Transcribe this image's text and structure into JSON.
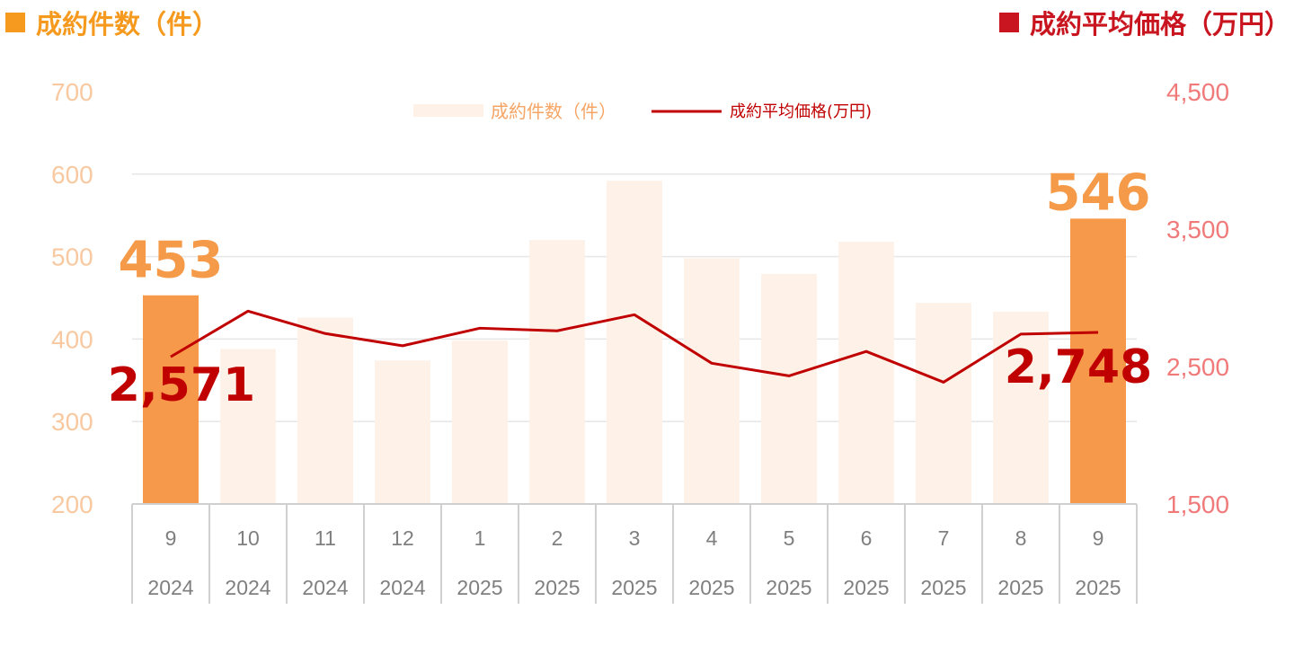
{
  "headers": {
    "left_title": "成約件数（件）",
    "right_title": "成約平均価格（万円）"
  },
  "colors": {
    "bar_light": "#FDF1E8",
    "bar_highlight": "#F7994A",
    "line": "#C00000",
    "grid": "#E6E6E6",
    "left_tick": "#F8C9A0",
    "right_tick": "#F07A7A",
    "header_left": "#F59A1E",
    "header_right": "#C8151F"
  },
  "chart_data": {
    "type": "bar",
    "categories": [
      [
        "9",
        "2024"
      ],
      [
        "10",
        "2024"
      ],
      [
        "11",
        "2024"
      ],
      [
        "12",
        "2024"
      ],
      [
        "1",
        "2025"
      ],
      [
        "2",
        "2025"
      ],
      [
        "3",
        "2025"
      ],
      [
        "4",
        "2025"
      ],
      [
        "5",
        "2025"
      ],
      [
        "6",
        "2025"
      ],
      [
        "7",
        "2025"
      ],
      [
        "8",
        "2025"
      ],
      [
        "9",
        "2025"
      ]
    ],
    "series": [
      {
        "name": "成約件数（件）",
        "kind": "bar",
        "axis": "left",
        "values": [
          453,
          388,
          426,
          374,
          398,
          520,
          592,
          498,
          479,
          518,
          444,
          433,
          546
        ],
        "highlight": [
          true,
          false,
          false,
          false,
          false,
          false,
          false,
          false,
          false,
          false,
          false,
          false,
          true
        ]
      },
      {
        "name": "成約平均価格(万円)",
        "kind": "line",
        "axis": "right",
        "values": [
          2571,
          2903,
          2740,
          2651,
          2779,
          2760,
          2877,
          2524,
          2432,
          2610,
          2386,
          2736,
          2748
        ]
      }
    ],
    "left_axis": {
      "ticks": [
        "700",
        "600",
        "500",
        "400",
        "300",
        "200"
      ],
      "range": [
        200,
        700
      ]
    },
    "right_axis": {
      "ticks": [
        "4,500",
        "3,500",
        "2,500",
        "1,500"
      ],
      "range": [
        1500,
        4500
      ]
    },
    "data_labels": {
      "bar_first": "453",
      "bar_last": "546",
      "line_first": "2,571",
      "line_last": "2,748"
    },
    "legend": {
      "position": "top-center",
      "bar_label": "成約件数（件）",
      "line_label": "成約平均価格(万円)"
    },
    "grid": true
  }
}
